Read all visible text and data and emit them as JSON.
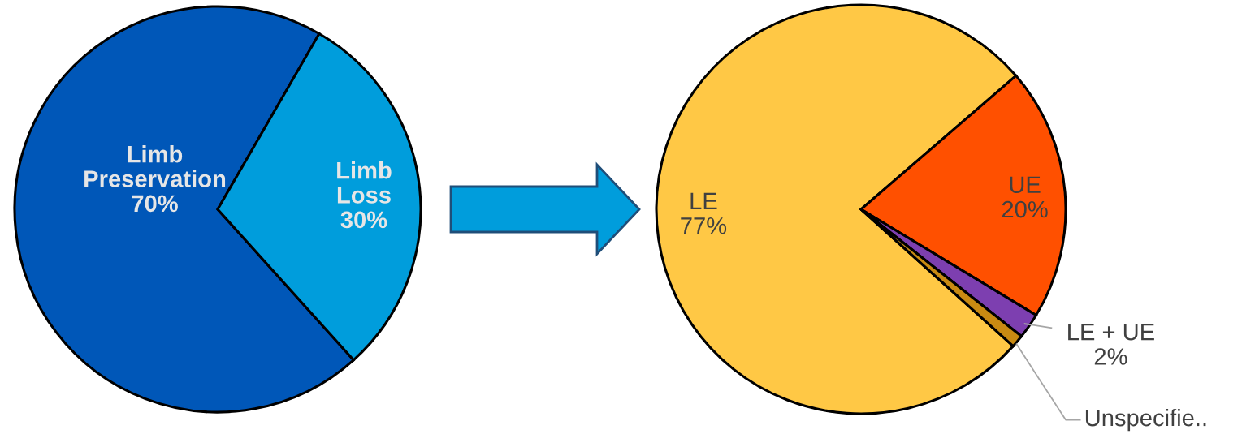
{
  "chart_data": [
    {
      "type": "pie",
      "categories": [
        "Limb Preservation",
        "Limb Loss"
      ],
      "values": [
        70,
        30
      ],
      "value_labels": [
        "70%",
        "30%"
      ],
      "colors": [
        "#0057b8",
        "#009ddc"
      ]
    },
    {
      "type": "pie",
      "categories": [
        "LE",
        "UE",
        "LE + UE",
        "Unspecifie.."
      ],
      "values": [
        77,
        20,
        2,
        1
      ],
      "value_labels": [
        "77%",
        "20%",
        "2%",
        null
      ],
      "colors": [
        "#ffc845",
        "#ff5000",
        "#7d3fb0",
        "#c88a12"
      ]
    }
  ]
}
